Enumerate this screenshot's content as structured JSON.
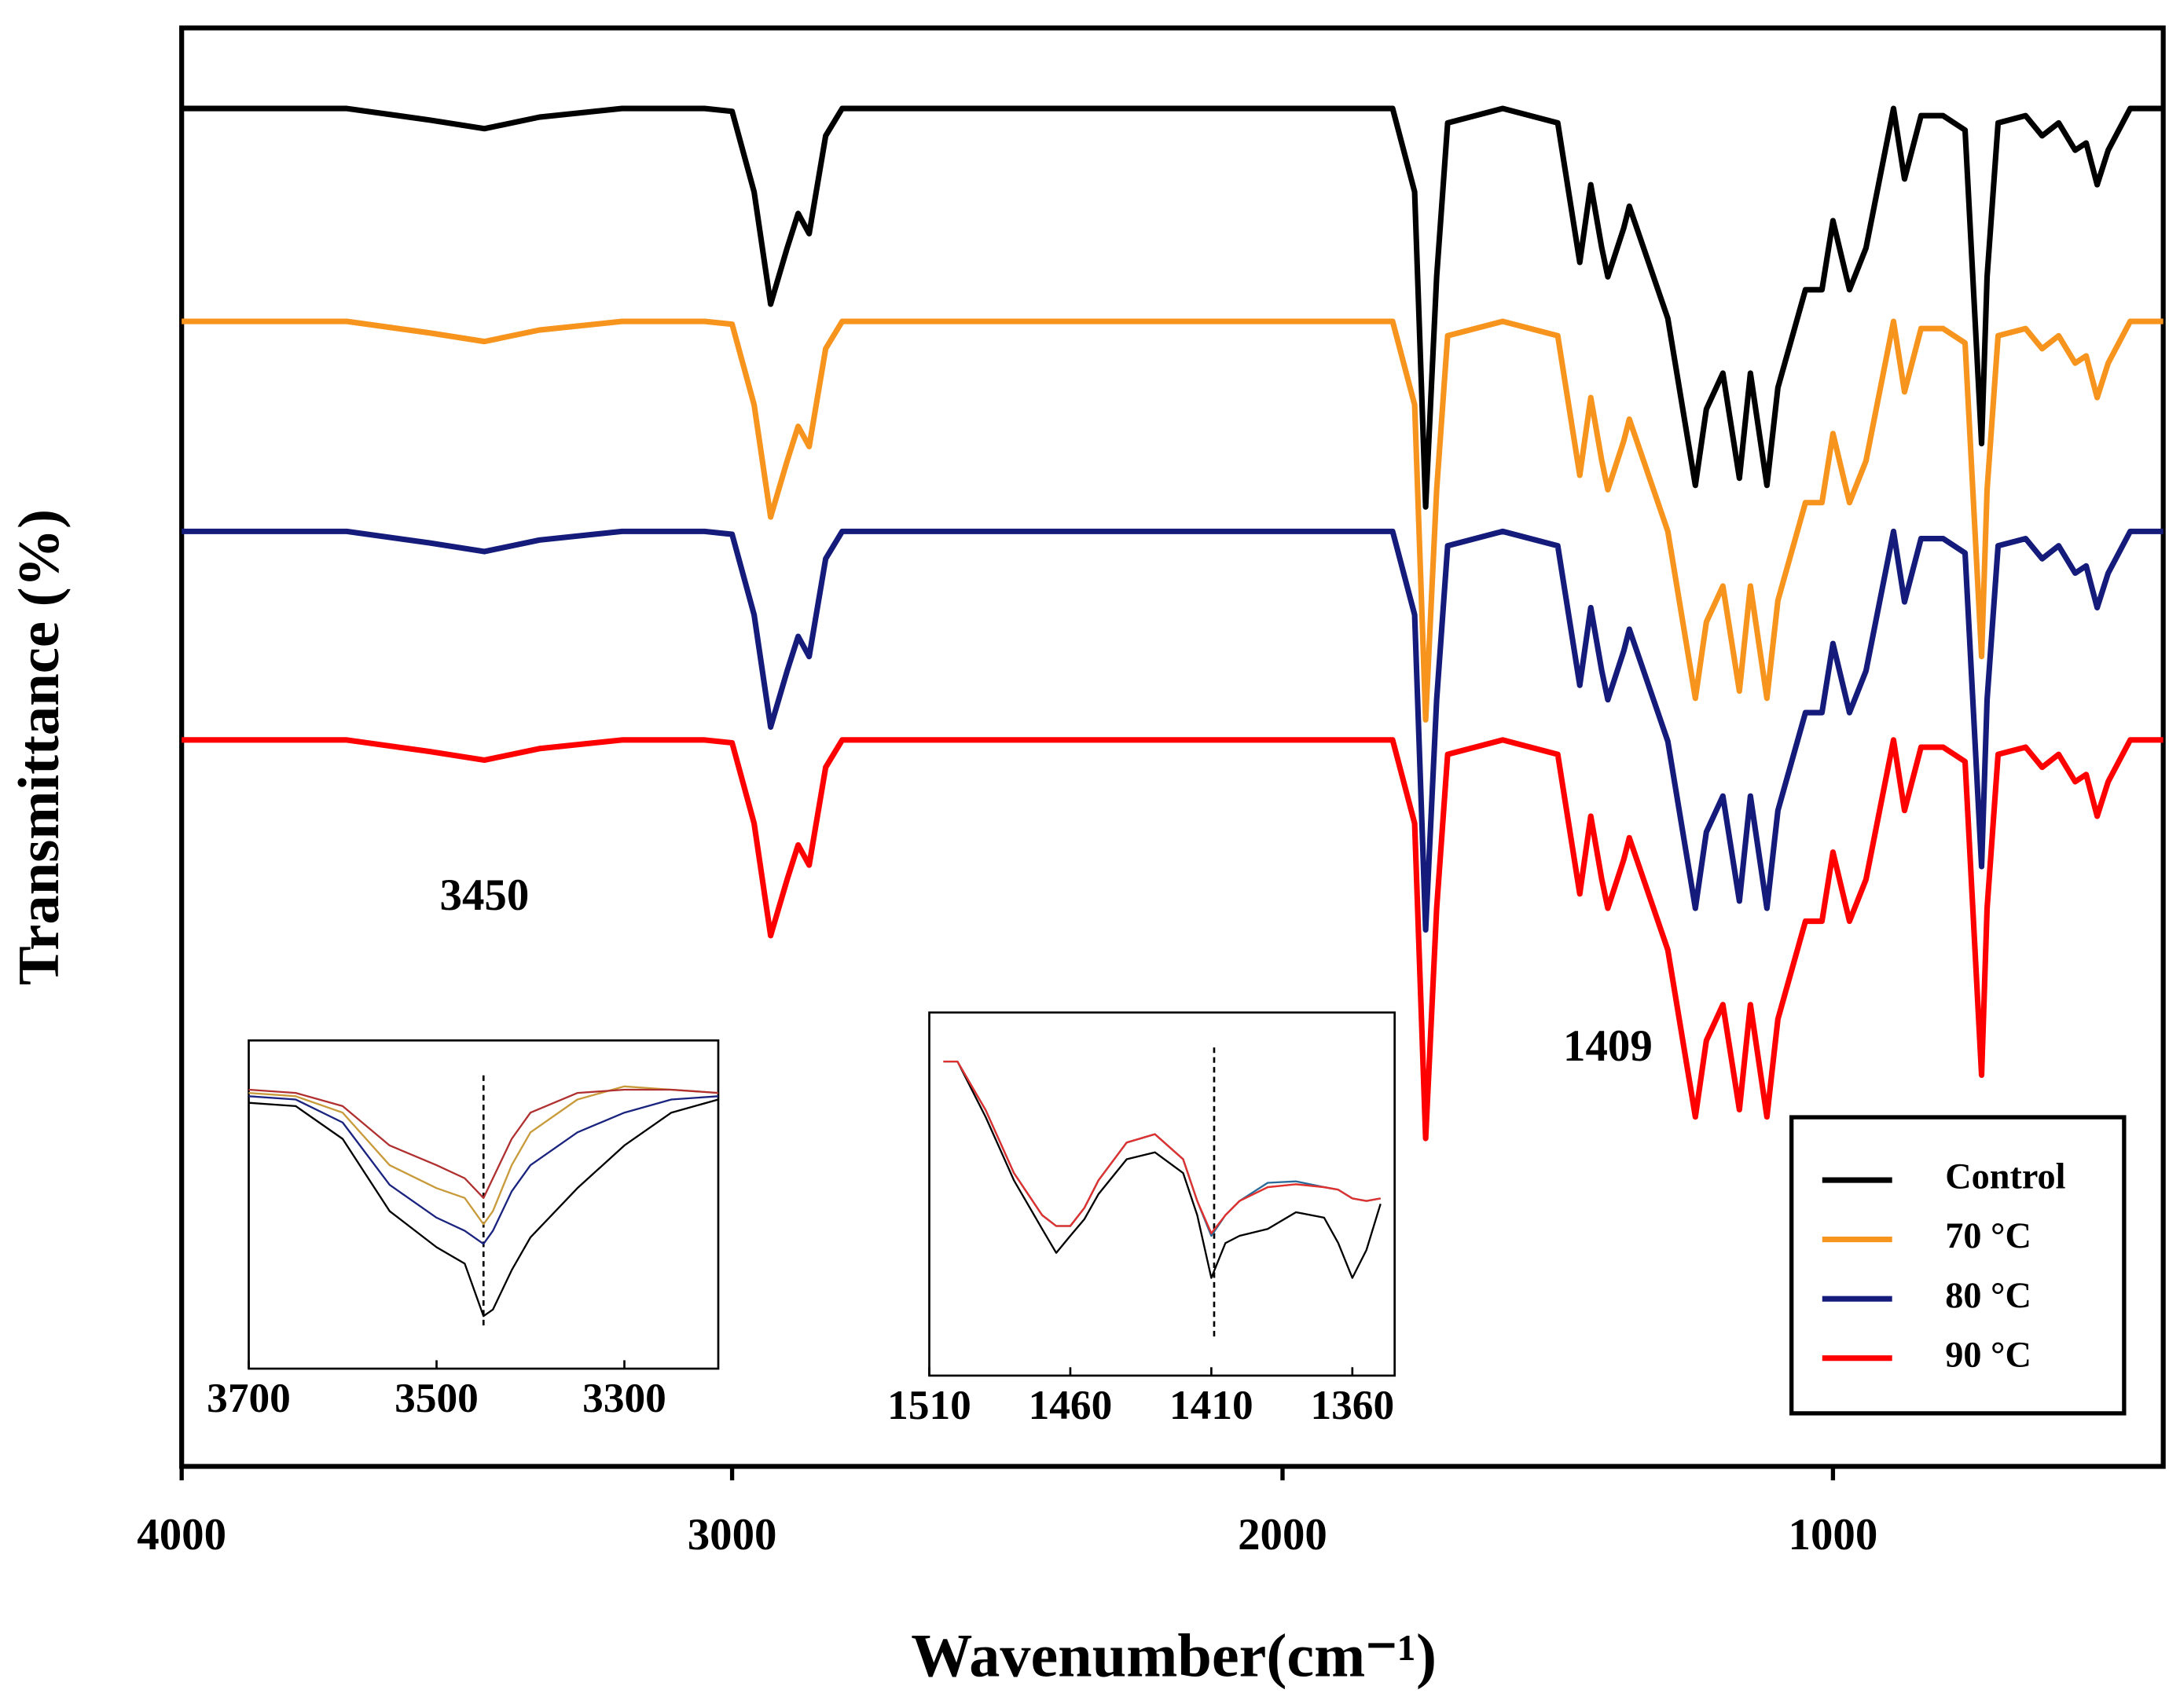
{
  "chart_data": [
    {
      "type": "line",
      "xlabel": "Wavenumber(cm⁻¹)",
      "ylabel": "Transmittance (%)",
      "x": [
        4000,
        3700,
        3550,
        3450,
        3350,
        3200,
        3050,
        3000,
        2960,
        2930,
        2900,
        2880,
        2860,
        2830,
        2800,
        2000,
        1800,
        1760,
        1740,
        1720,
        1700,
        1600,
        1500,
        1460,
        1440,
        1420,
        1409,
        1380,
        1370,
        1300,
        1250,
        1230,
        1200,
        1170,
        1150,
        1120,
        1100,
        1050,
        1020,
        1000,
        970,
        940,
        890,
        870,
        840,
        800,
        760,
        730,
        720,
        700,
        650,
        620,
        590,
        560,
        540,
        520,
        500,
        460,
        400
      ],
      "xlim": [
        4000,
        400
      ],
      "xticks": [
        4000,
        3000,
        2000,
        1000
      ],
      "ylim": [
        0,
        100
      ],
      "legend": "lower right",
      "annotations": [
        {
          "value": 3450,
          "label": "3450",
          "color": "#f9c2a0"
        },
        {
          "value": 1409,
          "label": "1409",
          "color": "#5ad0f0"
        }
      ],
      "series": [
        {
          "name": "Control",
          "color": "#000000",
          "values": [
            94.4,
            94.4,
            93.6,
            93.0,
            93.8,
            94.4,
            94.4,
            94.2,
            88.6,
            80.8,
            84.7,
            87.1,
            85.7,
            92.5,
            94.4,
            94.4,
            94.4,
            88.6,
            66.7,
            82.7,
            93.4,
            94.4,
            93.4,
            83.7,
            89.1,
            84.7,
            82.7,
            86.1,
            87.6,
            79.8,
            68.2,
            73.5,
            76.0,
            68.7,
            76.0,
            68.2,
            75.0,
            81.8,
            81.8,
            86.6,
            81.8,
            84.7,
            94.4,
            89.5,
            93.9,
            93.9,
            92.9,
            71.1,
            82.7,
            93.4,
            93.9,
            92.5,
            93.4,
            91.5,
            92.0,
            89.1,
            91.5,
            94.4,
            94.4
          ]
        },
        {
          "name": "70 °C",
          "color": "#f7941d",
          "values": [
            79.6,
            79.6,
            78.8,
            78.2,
            79.0,
            79.6,
            79.6,
            79.4,
            73.8,
            66.0,
            69.9,
            72.3,
            70.9,
            77.7,
            79.6,
            79.6,
            79.6,
            73.8,
            51.9,
            67.9,
            78.6,
            79.6,
            78.6,
            68.9,
            74.3,
            69.9,
            67.9,
            71.3,
            72.8,
            65.0,
            53.4,
            58.7,
            61.2,
            53.9,
            61.2,
            53.4,
            60.2,
            67.0,
            67.0,
            71.8,
            67.0,
            69.9,
            79.6,
            74.7,
            79.1,
            79.1,
            78.1,
            56.3,
            67.9,
            78.6,
            79.1,
            77.7,
            78.6,
            76.7,
            77.2,
            74.3,
            76.7,
            79.6,
            79.6
          ]
        },
        {
          "name": "80 °C",
          "color": "#141b7a",
          "values": [
            65.0,
            65.0,
            64.2,
            63.6,
            64.4,
            65.0,
            65.0,
            64.8,
            59.2,
            51.4,
            55.3,
            57.7,
            56.3,
            63.1,
            65.0,
            65.0,
            65.0,
            59.2,
            37.3,
            53.3,
            64.0,
            65.0,
            64.0,
            54.3,
            59.7,
            55.3,
            53.3,
            56.7,
            58.2,
            50.4,
            38.8,
            44.1,
            46.6,
            39.3,
            46.6,
            38.8,
            45.6,
            52.4,
            52.4,
            57.2,
            52.4,
            55.3,
            65.0,
            60.1,
            64.5,
            64.5,
            63.5,
            41.7,
            53.3,
            64.0,
            64.5,
            63.1,
            64.0,
            62.1,
            62.6,
            59.7,
            62.1,
            65.0,
            65.0
          ]
        },
        {
          "name": "90 °C",
          "color": "#ff0000",
          "values": [
            50.5,
            50.5,
            49.7,
            49.1,
            49.9,
            50.5,
            50.5,
            50.3,
            44.7,
            36.9,
            40.8,
            43.2,
            41.8,
            48.6,
            50.5,
            50.5,
            50.5,
            44.7,
            22.8,
            38.8,
            49.5,
            50.5,
            49.5,
            39.8,
            45.2,
            40.8,
            38.8,
            42.2,
            43.7,
            35.9,
            24.3,
            29.6,
            32.1,
            24.8,
            32.1,
            24.3,
            31.1,
            37.9,
            37.9,
            42.7,
            37.9,
            40.8,
            50.5,
            45.6,
            50.0,
            50.0,
            49.0,
            27.2,
            38.8,
            49.5,
            50.0,
            48.6,
            49.5,
            47.6,
            48.1,
            45.2,
            47.6,
            50.5,
            50.5
          ]
        }
      ]
    },
    {
      "type": "line",
      "x": [
        3700,
        3650,
        3600,
        3550,
        3500,
        3470,
        3450,
        3440,
        3420,
        3400,
        3350,
        3300,
        3250,
        3200
      ],
      "xlim": [
        3700,
        3200
      ],
      "xticks": [
        3700,
        3500,
        3300
      ],
      "ylim": [
        0,
        100
      ],
      "series": [
        {
          "color": "#000000",
          "values": [
            81,
            80,
            70,
            48,
            37,
            32,
            16,
            18,
            30,
            40,
            55,
            68,
            78,
            82
          ]
        },
        {
          "color": "#c89a3a",
          "values": [
            84,
            83,
            78,
            62,
            55,
            52,
            44,
            48,
            62,
            72,
            82,
            86,
            85,
            84
          ]
        },
        {
          "color": "#1a237e",
          "values": [
            83,
            82,
            75,
            56,
            46,
            42,
            38,
            42,
            54,
            62,
            72,
            78,
            82,
            83
          ]
        },
        {
          "color": "#b03030",
          "values": [
            85,
            84,
            80,
            68,
            62,
            58,
            52,
            58,
            70,
            78,
            84,
            85,
            85,
            84
          ]
        }
      ]
    },
    {
      "type": "line",
      "x": [
        1505,
        1500,
        1490,
        1480,
        1470,
        1465,
        1460,
        1455,
        1450,
        1440,
        1430,
        1420,
        1415,
        1410,
        1405,
        1400,
        1390,
        1380,
        1370,
        1365,
        1360,
        1355,
        1350
      ],
      "xlim": [
        1510,
        1345
      ],
      "xticks": [
        1510,
        1460,
        1410,
        1360
      ],
      "ylim": [
        0,
        100
      ],
      "series": [
        {
          "color": "#000000",
          "values": [
            86.5,
            86.5,
            71.2,
            53.8,
            40.4,
            33.8,
            38.5,
            43.1,
            50.0,
            59.6,
            61.5,
            55.8,
            44.2,
            26.9,
            36.5,
            38.5,
            40.4,
            45.0,
            43.5,
            36.5,
            26.9,
            34.6,
            47.3
          ]
        },
        {
          "color": "#e8893a",
          "values": [
            86.5,
            86.5,
            73.1,
            55.8,
            44.2,
            41.2,
            41.2,
            46.2,
            53.8,
            64.2,
            66.5,
            59.6,
            48.1,
            38.5,
            44.2,
            48.1,
            51.9,
            52.7,
            51.9,
            51.2,
            48.8,
            48.1,
            48.8
          ]
        },
        {
          "color": "#2a6a9a",
          "values": [
            86.5,
            86.5,
            73.1,
            55.8,
            44.2,
            41.2,
            41.2,
            46.2,
            53.8,
            64.2,
            66.5,
            59.6,
            48.1,
            38.5,
            44.2,
            48.1,
            53.1,
            53.5,
            51.9,
            51.2,
            48.8,
            48.1,
            48.8
          ]
        },
        {
          "color": "#e03030",
          "values": [
            86.5,
            86.5,
            73.1,
            55.8,
            44.2,
            41.2,
            41.2,
            46.2,
            53.8,
            64.2,
            66.5,
            59.6,
            48.1,
            39.2,
            44.2,
            48.1,
            51.9,
            52.7,
            51.9,
            51.2,
            48.8,
            48.1,
            48.8
          ]
        }
      ]
    }
  ]
}
